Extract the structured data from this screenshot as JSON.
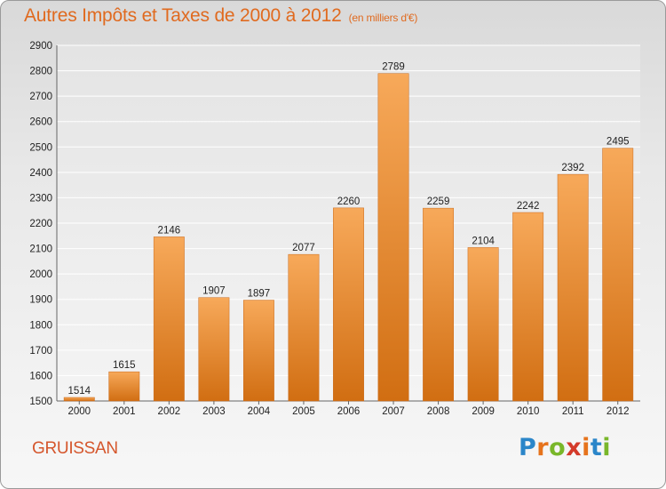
{
  "title": "Autres Impôts et Taxes de 2000 à 2012",
  "title_unit": "(en milliers d'€)",
  "place": "GRUISSAN",
  "logo": {
    "text": "Proxiti",
    "letter_colors": [
      "#2b86c9",
      "#e6731c",
      "#79b72a",
      "#d43a2a",
      "#e6731c",
      "#2b86c9",
      "#79b72a"
    ]
  },
  "colors": {
    "title": "#e06a1f",
    "place": "#d5562c",
    "bar_top": "#f7a95a",
    "bar_bottom": "#d16e12"
  },
  "chart_data": {
    "type": "bar",
    "title": "Autres Impôts et Taxes de 2000 à 2012",
    "categories": [
      "2000",
      "2001",
      "2002",
      "2003",
      "2004",
      "2005",
      "2006",
      "2007",
      "2008",
      "2009",
      "2010",
      "2011",
      "2012"
    ],
    "values": [
      1514,
      1615,
      2146,
      1907,
      1897,
      2077,
      2260,
      2789,
      2259,
      2104,
      2242,
      2392,
      2495
    ],
    "ylim": [
      1500,
      2900
    ],
    "yticks": [
      1500,
      1600,
      1700,
      1800,
      1900,
      2000,
      2100,
      2200,
      2300,
      2400,
      2500,
      2600,
      2700,
      2800,
      2900
    ],
    "grid": true,
    "xlabel": "",
    "ylabel": ""
  }
}
